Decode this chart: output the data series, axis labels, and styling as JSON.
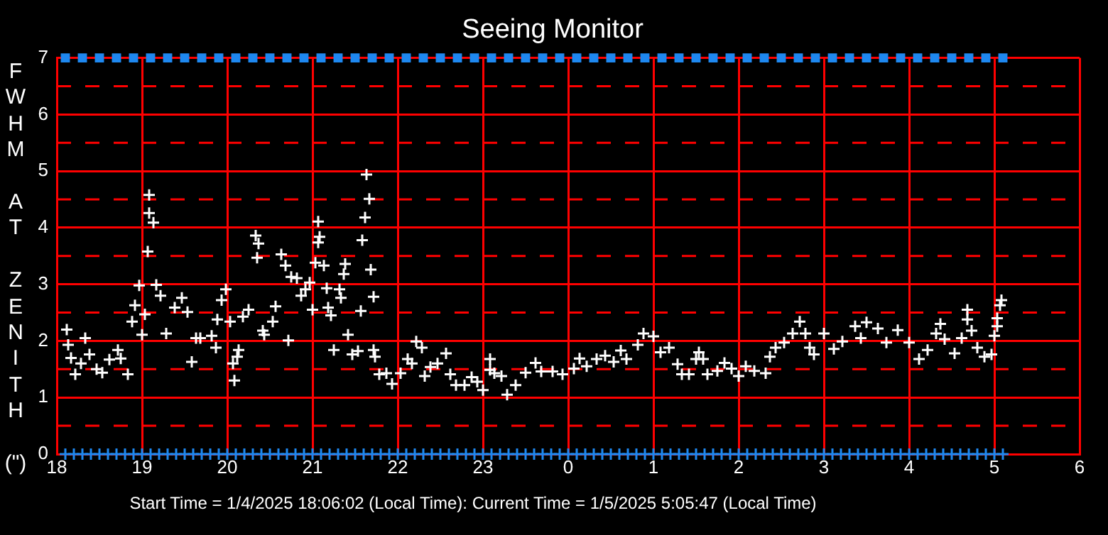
{
  "chart_data": {
    "type": "scatter",
    "title": "Seeing Monitor",
    "ylabel": "FWHM AT ZENITH (\")",
    "annotations": [
      "Start Time = 1/4/2025 18:06:02 (Local Time): Current Time = 1/5/2025 5:05:47 (Local Time)"
    ],
    "xlim": [
      "2025-01-04T18:00",
      "2025-01-05T06:00"
    ],
    "xticks": [
      {
        "value": "2025-01-04T18:00",
        "label": "18"
      },
      {
        "value": "2025-01-04T19:00",
        "label": "19"
      },
      {
        "value": "2025-01-04T20:00",
        "label": "20"
      },
      {
        "value": "2025-01-04T21:00",
        "label": "21"
      },
      {
        "value": "2025-01-04T22:00",
        "label": "22"
      },
      {
        "value": "2025-01-04T23:00",
        "label": "23"
      },
      {
        "value": "2025-01-05T00:00",
        "label": "0"
      },
      {
        "value": "2025-01-05T01:00",
        "label": "1"
      },
      {
        "value": "2025-01-05T02:00",
        "label": "2"
      },
      {
        "value": "2025-01-05T03:00",
        "label": "3"
      },
      {
        "value": "2025-01-05T04:00",
        "label": "4"
      },
      {
        "value": "2025-01-05T05:00",
        "label": "5"
      },
      {
        "value": "2025-01-05T06:00",
        "label": "6"
      }
    ],
    "ylim": [
      0,
      7
    ],
    "yticks": [
      0,
      1,
      2,
      3,
      4,
      5,
      6,
      7
    ],
    "grid": true,
    "legend": false,
    "ref_lines": [
      {
        "axis": "y",
        "value": 0.5,
        "color": "#ff0000",
        "line_style": "dashed"
      },
      {
        "axis": "y",
        "value": 1.5,
        "color": "#ff0000",
        "line_style": "dashed"
      },
      {
        "axis": "y",
        "value": 2.5,
        "color": "#ff0000",
        "line_style": "dashed"
      },
      {
        "axis": "y",
        "value": 3.5,
        "color": "#ff0000",
        "line_style": "dashed"
      },
      {
        "axis": "y",
        "value": 4.5,
        "color": "#ff0000",
        "line_style": "dashed"
      },
      {
        "axis": "y",
        "value": 5.5,
        "color": "#ff0000",
        "line_style": "dashed"
      },
      {
        "axis": "y",
        "value": 6.5,
        "color": "#ff0000",
        "line_style": "dashed"
      }
    ],
    "series": [
      {
        "color": "#ffffff",
        "marker": "cross",
        "x": [
          "2025-01-04T18:07",
          "2025-01-04T18:08",
          "2025-01-04T18:10",
          "2025-01-04T18:13",
          "2025-01-04T18:17",
          "2025-01-04T18:20",
          "2025-01-04T18:23",
          "2025-01-04T18:28",
          "2025-01-04T18:32",
          "2025-01-04T18:37",
          "2025-01-04T18:43",
          "2025-01-04T18:45",
          "2025-01-04T18:50",
          "2025-01-04T18:53",
          "2025-01-04T18:55",
          "2025-01-04T18:58",
          "2025-01-04T19:00",
          "2025-01-04T19:02",
          "2025-01-04T19:04",
          "2025-01-04T19:05",
          "2025-01-04T19:05",
          "2025-01-04T19:08",
          "2025-01-04T19:10",
          "2025-01-04T19:13",
          "2025-01-04T19:17",
          "2025-01-04T19:23",
          "2025-01-04T19:28",
          "2025-01-04T19:32",
          "2025-01-04T19:35",
          "2025-01-04T19:38",
          "2025-01-04T19:41",
          "2025-01-04T19:49",
          "2025-01-04T19:52",
          "2025-01-04T19:53",
          "2025-01-04T19:56",
          "2025-01-04T19:59",
          "2025-01-04T20:02",
          "2025-01-04T20:04",
          "2025-01-04T20:05",
          "2025-01-04T20:07",
          "2025-01-04T20:08",
          "2025-01-04T20:11",
          "2025-01-04T20:15",
          "2025-01-04T20:20",
          "2025-01-04T20:21",
          "2025-01-04T20:22",
          "2025-01-04T20:25",
          "2025-01-04T20:26",
          "2025-01-04T20:32",
          "2025-01-04T20:34",
          "2025-01-04T20:38",
          "2025-01-04T20:41",
          "2025-01-04T20:43",
          "2025-01-04T20:45",
          "2025-01-04T20:49",
          "2025-01-04T20:52",
          "2025-01-04T20:55",
          "2025-01-04T20:58",
          "2025-01-04T21:00",
          "2025-01-04T21:02",
          "2025-01-04T21:04",
          "2025-01-04T21:04",
          "2025-01-04T21:05",
          "2025-01-04T21:08",
          "2025-01-04T21:10",
          "2025-01-04T21:11",
          "2025-01-04T21:13",
          "2025-01-04T21:15",
          "2025-01-04T21:19",
          "2025-01-04T21:20",
          "2025-01-04T21:22",
          "2025-01-04T21:23",
          "2025-01-04T21:25",
          "2025-01-04T21:28",
          "2025-01-04T21:32",
          "2025-01-04T21:34",
          "2025-01-04T21:35",
          "2025-01-04T21:37",
          "2025-01-04T21:38",
          "2025-01-04T21:40",
          "2025-01-04T21:41",
          "2025-01-04T21:43",
          "2025-01-04T21:43",
          "2025-01-04T21:44",
          "2025-01-04T21:47",
          "2025-01-04T21:52",
          "2025-01-04T21:56",
          "2025-01-04T22:02",
          "2025-01-04T22:07",
          "2025-01-04T22:10",
          "2025-01-04T22:13",
          "2025-01-04T22:17",
          "2025-01-04T22:19",
          "2025-01-04T22:23",
          "2025-01-04T22:28",
          "2025-01-04T22:34",
          "2025-01-04T22:37",
          "2025-01-04T22:41",
          "2025-01-04T22:47",
          "2025-01-04T22:52",
          "2025-01-04T22:56",
          "2025-01-04T23:00",
          "2025-01-04T23:05",
          "2025-01-04T23:05",
          "2025-01-04T23:08",
          "2025-01-04T23:13",
          "2025-01-04T23:17",
          "2025-01-04T23:23",
          "2025-01-04T23:30",
          "2025-01-04T23:37",
          "2025-01-04T23:41",
          "2025-01-04T23:49",
          "2025-01-04T23:56",
          "2025-01-05T00:04",
          "2025-01-05T00:08",
          "2025-01-05T00:13",
          "2025-01-05T00:20",
          "2025-01-05T00:26",
          "2025-01-05T00:32",
          "2025-01-05T00:37",
          "2025-01-05T00:41",
          "2025-01-05T00:49",
          "2025-01-05T00:53",
          "2025-01-05T01:00",
          "2025-01-05T01:05",
          "2025-01-05T01:11",
          "2025-01-05T01:17",
          "2025-01-05T01:20",
          "2025-01-05T01:25",
          "2025-01-05T01:30",
          "2025-01-05T01:32",
          "2025-01-05T01:35",
          "2025-01-05T01:38",
          "2025-01-05T01:45",
          "2025-01-05T01:50",
          "2025-01-05T01:55",
          "2025-01-05T02:00",
          "2025-01-05T02:05",
          "2025-01-05T02:11",
          "2025-01-05T02:19",
          "2025-01-05T02:22",
          "2025-01-05T02:26",
          "2025-01-05T02:32",
          "2025-01-05T02:38",
          "2025-01-05T02:43",
          "2025-01-05T02:47",
          "2025-01-05T02:50",
          "2025-01-05T02:53",
          "2025-01-05T03:00",
          "2025-01-05T03:07",
          "2025-01-05T03:13",
          "2025-01-05T03:22",
          "2025-01-05T03:26",
          "2025-01-05T03:30",
          "2025-01-05T03:38",
          "2025-01-05T03:44",
          "2025-01-05T03:52",
          "2025-01-05T04:00",
          "2025-01-05T04:07",
          "2025-01-05T04:13",
          "2025-01-05T04:19",
          "2025-01-05T04:22",
          "2025-01-05T04:25",
          "2025-01-05T04:32",
          "2025-01-05T04:37",
          "2025-01-05T04:41",
          "2025-01-05T04:41",
          "2025-01-05T04:44",
          "2025-01-05T04:48",
          "2025-01-05T04:53",
          "2025-01-05T04:58",
          "2025-01-05T05:00",
          "2025-01-05T05:02",
          "2025-01-05T05:02",
          "2025-01-05T05:04",
          "2025-01-05T05:05"
        ],
        "values": [
          2.2,
          1.93,
          1.7,
          1.41,
          1.6,
          2.05,
          1.76,
          1.5,
          1.44,
          1.67,
          1.84,
          1.69,
          1.41,
          2.34,
          2.63,
          2.98,
          2.11,
          2.47,
          3.58,
          4.58,
          4.26,
          4.09,
          2.99,
          2.8,
          2.13,
          2.59,
          2.76,
          2.51,
          1.63,
          2.05,
          2.05,
          2.09,
          1.88,
          2.38,
          2.72,
          2.91,
          2.34,
          1.6,
          1.3,
          1.72,
          1.84,
          2.43,
          2.55,
          3.86,
          3.47,
          3.72,
          2.18,
          2.11,
          2.34,
          2.61,
          3.53,
          3.33,
          2.01,
          3.13,
          3.11,
          2.8,
          2.91,
          3.03,
          2.55,
          3.38,
          3.74,
          4.11,
          3.84,
          3.33,
          2.93,
          2.59,
          2.45,
          1.84,
          2.91,
          2.76,
          3.18,
          3.36,
          2.11,
          1.76,
          1.82,
          2.53,
          3.78,
          4.18,
          4.94,
          4.51,
          3.26,
          2.78,
          1.84,
          1.72,
          1.41,
          1.43,
          1.24,
          1.43,
          1.68,
          1.6,
          1.99,
          1.88,
          1.38,
          1.54,
          1.6,
          1.78,
          1.41,
          1.22,
          1.22,
          1.36,
          1.28,
          1.13,
          1.68,
          1.49,
          1.43,
          1.38,
          1.05,
          1.22,
          1.44,
          1.61,
          1.46,
          1.46,
          1.41,
          1.51,
          1.69,
          1.55,
          1.68,
          1.74,
          1.63,
          1.83,
          1.68,
          1.93,
          2.13,
          2.08,
          1.8,
          1.88,
          1.59,
          1.41,
          1.41,
          1.68,
          1.8,
          1.68,
          1.41,
          1.47,
          1.61,
          1.51,
          1.38,
          1.55,
          1.47,
          1.43,
          1.72,
          1.88,
          1.97,
          2.13,
          2.34,
          2.13,
          1.88,
          1.76,
          2.13,
          1.86,
          1.99,
          2.26,
          2.05,
          2.33,
          2.22,
          1.97,
          2.19,
          1.97,
          1.68,
          1.84,
          2.13,
          2.3,
          2.03,
          1.78,
          2.05,
          2.55,
          2.38,
          2.18,
          1.88,
          1.72,
          1.76,
          2.09,
          2.26,
          2.4,
          2.63,
          2.72
        ]
      },
      {
        "color": "#1e88f0",
        "marker": "square",
        "x": [
          "2025-01-04T18:06",
          "2025-01-04T18:18",
          "2025-01-04T18:30",
          "2025-01-04T18:42",
          "2025-01-04T18:54",
          "2025-01-04T19:06",
          "2025-01-04T19:18",
          "2025-01-04T19:30",
          "2025-01-04T19:42",
          "2025-01-04T19:54",
          "2025-01-04T20:06",
          "2025-01-04T20:18",
          "2025-01-04T20:30",
          "2025-01-04T20:42",
          "2025-01-04T20:54",
          "2025-01-04T21:06",
          "2025-01-04T21:18",
          "2025-01-04T21:30",
          "2025-01-04T21:42",
          "2025-01-04T21:54",
          "2025-01-04T22:06",
          "2025-01-04T22:18",
          "2025-01-04T22:30",
          "2025-01-04T22:42",
          "2025-01-04T22:54",
          "2025-01-04T23:06",
          "2025-01-04T23:18",
          "2025-01-04T23:30",
          "2025-01-04T23:42",
          "2025-01-04T23:54",
          "2025-01-05T00:06",
          "2025-01-05T00:18",
          "2025-01-05T00:30",
          "2025-01-05T00:42",
          "2025-01-05T00:54",
          "2025-01-05T01:06",
          "2025-01-05T01:18",
          "2025-01-05T01:30",
          "2025-01-05T01:42",
          "2025-01-05T01:54",
          "2025-01-05T02:06",
          "2025-01-05T02:18",
          "2025-01-05T02:30",
          "2025-01-05T02:42",
          "2025-01-05T02:54",
          "2025-01-05T03:06",
          "2025-01-05T03:18",
          "2025-01-05T03:30",
          "2025-01-05T03:42",
          "2025-01-05T03:54",
          "2025-01-05T04:06",
          "2025-01-05T04:18",
          "2025-01-05T04:30",
          "2025-01-05T04:42",
          "2025-01-05T04:54",
          "2025-01-05T05:06"
        ],
        "values": [
          7,
          7,
          7,
          7,
          7,
          7,
          7,
          7,
          7,
          7,
          7,
          7,
          7,
          7,
          7,
          7,
          7,
          7,
          7,
          7,
          7,
          7,
          7,
          7,
          7,
          7,
          7,
          7,
          7,
          7,
          7,
          7,
          7,
          7,
          7,
          7,
          7,
          7,
          7,
          7,
          7,
          7,
          7,
          7,
          7,
          7,
          7,
          7,
          7,
          7,
          7,
          7,
          7,
          7,
          7,
          7
        ]
      },
      {
        "color": "#1e88f0",
        "marker": "cross",
        "x": [
          "2025-01-04T18:06",
          "2025-01-04T18:12",
          "2025-01-04T18:18",
          "2025-01-04T18:24",
          "2025-01-04T18:30",
          "2025-01-04T18:36",
          "2025-01-04T18:42",
          "2025-01-04T18:48",
          "2025-01-04T18:54",
          "2025-01-04T19:00",
          "2025-01-04T19:06",
          "2025-01-04T19:12",
          "2025-01-04T19:18",
          "2025-01-04T19:24",
          "2025-01-04T19:30",
          "2025-01-04T19:36",
          "2025-01-04T19:42",
          "2025-01-04T19:48",
          "2025-01-04T19:54",
          "2025-01-04T20:00",
          "2025-01-04T20:06",
          "2025-01-04T20:12",
          "2025-01-04T20:18",
          "2025-01-04T20:24",
          "2025-01-04T20:30",
          "2025-01-04T20:36",
          "2025-01-04T20:42",
          "2025-01-04T20:48",
          "2025-01-04T20:54",
          "2025-01-04T21:00",
          "2025-01-04T21:06",
          "2025-01-04T21:12",
          "2025-01-04T21:18",
          "2025-01-04T21:24",
          "2025-01-04T21:30",
          "2025-01-04T21:36",
          "2025-01-04T21:42",
          "2025-01-04T21:48",
          "2025-01-04T21:54",
          "2025-01-04T22:00",
          "2025-01-04T22:06",
          "2025-01-04T22:12",
          "2025-01-04T22:18",
          "2025-01-04T22:24",
          "2025-01-04T22:30",
          "2025-01-04T22:36",
          "2025-01-04T22:42",
          "2025-01-04T22:48",
          "2025-01-04T22:54",
          "2025-01-04T23:00",
          "2025-01-04T23:06",
          "2025-01-04T23:12",
          "2025-01-04T23:18",
          "2025-01-04T23:24",
          "2025-01-04T23:30",
          "2025-01-04T23:36",
          "2025-01-04T23:42",
          "2025-01-04T23:48",
          "2025-01-04T23:54",
          "2025-01-05T00:00",
          "2025-01-05T00:06",
          "2025-01-05T00:12",
          "2025-01-05T00:18",
          "2025-01-05T00:24",
          "2025-01-05T00:30",
          "2025-01-05T00:36",
          "2025-01-05T00:42",
          "2025-01-05T00:48",
          "2025-01-05T00:54",
          "2025-01-05T01:00",
          "2025-01-05T01:06",
          "2025-01-05T01:12",
          "2025-01-05T01:18",
          "2025-01-05T01:24",
          "2025-01-05T01:30",
          "2025-01-05T01:36",
          "2025-01-05T01:42",
          "2025-01-05T01:48",
          "2025-01-05T01:54",
          "2025-01-05T02:00",
          "2025-01-05T02:06",
          "2025-01-05T02:12",
          "2025-01-05T02:18",
          "2025-01-05T02:24",
          "2025-01-05T02:30",
          "2025-01-05T02:36",
          "2025-01-05T02:42",
          "2025-01-05T02:48",
          "2025-01-05T02:54",
          "2025-01-05T03:00",
          "2025-01-05T03:06",
          "2025-01-05T03:12",
          "2025-01-05T03:18",
          "2025-01-05T03:24",
          "2025-01-05T03:30",
          "2025-01-05T03:36",
          "2025-01-05T03:42",
          "2025-01-05T03:48",
          "2025-01-05T03:54",
          "2025-01-05T04:00",
          "2025-01-05T04:06",
          "2025-01-05T04:12",
          "2025-01-05T04:18",
          "2025-01-05T04:24",
          "2025-01-05T04:30",
          "2025-01-05T04:36",
          "2025-01-05T04:42",
          "2025-01-05T04:48",
          "2025-01-05T04:54",
          "2025-01-05T05:00",
          "2025-01-05T05:06"
        ],
        "values": [
          0,
          0,
          0,
          0,
          0,
          0,
          0,
          0,
          0,
          0,
          0,
          0,
          0,
          0,
          0,
          0,
          0,
          0,
          0,
          0,
          0,
          0,
          0,
          0,
          0,
          0,
          0,
          0,
          0,
          0,
          0,
          0,
          0,
          0,
          0,
          0,
          0,
          0,
          0,
          0,
          0,
          0,
          0,
          0,
          0,
          0,
          0,
          0,
          0,
          0,
          0,
          0,
          0,
          0,
          0,
          0,
          0,
          0,
          0,
          0,
          0,
          0,
          0,
          0,
          0,
          0,
          0,
          0,
          0,
          0,
          0,
          0,
          0,
          0,
          0,
          0,
          0,
          0,
          0,
          0,
          0,
          0,
          0,
          0,
          0,
          0,
          0,
          0,
          0,
          0,
          0,
          0,
          0,
          0,
          0,
          0,
          0,
          0,
          0,
          0,
          0,
          0,
          0,
          0,
          0,
          0,
          0,
          0,
          0,
          0,
          0
        ]
      }
    ]
  }
}
